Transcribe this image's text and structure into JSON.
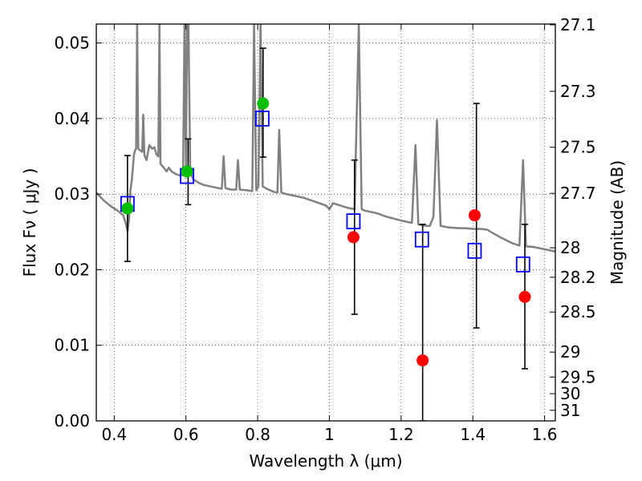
{
  "chart_data": {
    "type": "scatter",
    "title": "",
    "xlabel": "Wavelength  λ (μm)",
    "ylabel": "Flux  Fν  ( μJy )",
    "ylabel_right": "Magnitude (AB)",
    "xlim": [
      0.35,
      1.63
    ],
    "ylim": [
      0.0,
      0.0525
    ],
    "grid": true,
    "x_ticks": [
      0.4,
      0.6,
      0.8,
      1.0,
      1.2,
      1.4,
      1.6
    ],
    "x_tick_labels": [
      "0.4",
      "0.6",
      "0.8",
      "1",
      "1.2",
      "1.4",
      "1.6"
    ],
    "y_ticks": [
      0.0,
      0.01,
      0.02,
      0.03,
      0.04,
      0.05
    ],
    "y_tick_labels": [
      "0.00",
      "0.01",
      "0.02",
      "0.03",
      "0.04",
      "0.05"
    ],
    "mag_ticks": [
      {
        "label": "27.1",
        "flux": 0.0524
      },
      {
        "label": "27.3",
        "flux": 0.0436
      },
      {
        "label": "27.5",
        "flux": 0.0362
      },
      {
        "label": "27.7",
        "flux": 0.0301
      },
      {
        "label": "28",
        "flux": 0.0229
      },
      {
        "label": "28.2",
        "flux": 0.019
      },
      {
        "label": "28.5",
        "flux": 0.0144
      },
      {
        "label": "29",
        "flux": 0.0091
      },
      {
        "label": "29.5",
        "flux": 0.0058
      },
      {
        "label": "30",
        "flux": 0.0036
      },
      {
        "label": "31",
        "flux": 0.0014
      }
    ],
    "series": [
      {
        "kind": "line",
        "color": "#808080",
        "points": [
          [
            0.35,
            0.0302
          ],
          [
            0.37,
            0.0292
          ],
          [
            0.39,
            0.0284
          ],
          [
            0.41,
            0.0278
          ],
          [
            0.425,
            0.0272
          ],
          [
            0.432,
            0.0262
          ],
          [
            0.437,
            0.0251
          ],
          [
            0.441,
            0.0265
          ],
          [
            0.445,
            0.0305
          ],
          [
            0.449,
            0.0318
          ],
          [
            0.452,
            0.0335
          ],
          [
            0.455,
            0.0352
          ],
          [
            0.458,
            0.0358
          ],
          [
            0.461,
            0.036
          ],
          [
            0.464,
            0.0525
          ],
          [
            0.467,
            0.036
          ],
          [
            0.472,
            0.0358
          ],
          [
            0.478,
            0.0356
          ],
          [
            0.481,
            0.0405
          ],
          [
            0.484,
            0.0352
          ],
          [
            0.49,
            0.0345
          ],
          [
            0.498,
            0.0365
          ],
          [
            0.506,
            0.036
          ],
          [
            0.512,
            0.0362
          ],
          [
            0.518,
            0.0352
          ],
          [
            0.523,
            0.035
          ],
          [
            0.526,
            0.0525
          ],
          [
            0.529,
            0.034
          ],
          [
            0.538,
            0.0335
          ],
          [
            0.546,
            0.033
          ],
          [
            0.552,
            0.0335
          ],
          [
            0.56,
            0.033
          ],
          [
            0.57,
            0.0327
          ],
          [
            0.58,
            0.0325
          ],
          [
            0.592,
            0.0325
          ],
          [
            0.596,
            0.0525
          ],
          [
            0.6,
            0.033
          ],
          [
            0.603,
            0.0525
          ],
          [
            0.607,
            0.0525
          ],
          [
            0.612,
            0.033
          ],
          [
            0.62,
            0.032
          ],
          [
            0.635,
            0.0315
          ],
          [
            0.65,
            0.0312
          ],
          [
            0.67,
            0.031
          ],
          [
            0.69,
            0.0308
          ],
          [
            0.7,
            0.0307
          ],
          [
            0.705,
            0.035
          ],
          [
            0.71,
            0.0308
          ],
          [
            0.725,
            0.0306
          ],
          [
            0.74,
            0.0306
          ],
          [
            0.745,
            0.0345
          ],
          [
            0.75,
            0.0306
          ],
          [
            0.77,
            0.0305
          ],
          [
            0.785,
            0.0304
          ],
          [
            0.79,
            0.0525
          ],
          [
            0.796,
            0.0305
          ],
          [
            0.802,
            0.031
          ],
          [
            0.808,
            0.0525
          ],
          [
            0.814,
            0.031
          ],
          [
            0.83,
            0.0306
          ],
          [
            0.845,
            0.0303
          ],
          [
            0.855,
            0.0302
          ],
          [
            0.86,
            0.0385
          ],
          [
            0.866,
            0.0302
          ],
          [
            0.88,
            0.03
          ],
          [
            0.9,
            0.0298
          ],
          [
            0.93,
            0.0295
          ],
          [
            0.96,
            0.029
          ],
          [
            0.99,
            0.0285
          ],
          [
            1.0,
            0.028
          ],
          [
            1.01,
            0.0288
          ],
          [
            1.03,
            0.0285
          ],
          [
            1.05,
            0.0282
          ],
          [
            1.07,
            0.028
          ],
          [
            1.082,
            0.0525
          ],
          [
            1.09,
            0.028
          ],
          [
            1.1,
            0.0278
          ],
          [
            1.13,
            0.0275
          ],
          [
            1.16,
            0.027
          ],
          [
            1.2,
            0.0265
          ],
          [
            1.23,
            0.0262
          ],
          [
            1.24,
            0.0365
          ],
          [
            1.248,
            0.026
          ],
          [
            1.27,
            0.0258
          ],
          [
            1.28,
            0.0258
          ],
          [
            1.29,
            0.027
          ],
          [
            1.3,
            0.0398
          ],
          [
            1.31,
            0.0258
          ],
          [
            1.33,
            0.0256
          ],
          [
            1.36,
            0.0255
          ],
          [
            1.38,
            0.0255
          ],
          [
            1.4,
            0.0254
          ],
          [
            1.42,
            0.0254
          ],
          [
            1.44,
            0.0253
          ],
          [
            1.45,
            0.025
          ],
          [
            1.48,
            0.0242
          ],
          [
            1.51,
            0.0235
          ],
          [
            1.53,
            0.0232
          ],
          [
            1.54,
            0.0345
          ],
          [
            1.548,
            0.0231
          ],
          [
            1.57,
            0.023
          ],
          [
            1.59,
            0.0228
          ],
          [
            1.61,
            0.0226
          ],
          [
            1.63,
            0.0224
          ]
        ]
      },
      {
        "kind": "errorbar",
        "color": "#000000",
        "points": [
          {
            "x": 0.437,
            "ylo": 0.0211,
            "yhi": 0.0351
          },
          {
            "x": 0.606,
            "ylo": 0.0286,
            "yhi": 0.0373
          },
          {
            "x": 0.815,
            "ylo": 0.0349,
            "yhi": 0.0493
          },
          {
            "x": 1.07,
            "ylo": 0.0141,
            "yhi": 0.0345
          },
          {
            "x": 1.26,
            "ylo": 0.0,
            "yhi": 0.026
          },
          {
            "x": 1.41,
            "ylo": 0.0123,
            "yhi": 0.042
          },
          {
            "x": 1.545,
            "ylo": 0.0069,
            "yhi": 0.026
          }
        ]
      },
      {
        "kind": "marker",
        "shape": "square",
        "color": "#0000ff",
        "points": [
          [
            0.437,
            0.0287
          ],
          [
            0.603,
            0.0324
          ],
          [
            0.813,
            0.04
          ],
          [
            1.067,
            0.0264
          ],
          [
            1.258,
            0.024
          ],
          [
            1.405,
            0.0225
          ],
          [
            1.54,
            0.0207
          ]
        ]
      },
      {
        "kind": "marker",
        "shape": "circle",
        "color": "#00c000",
        "points": [
          [
            0.437,
            0.0281
          ],
          [
            0.603,
            0.033
          ],
          [
            0.815,
            0.042
          ]
        ]
      },
      {
        "kind": "marker",
        "shape": "circle",
        "color": "#ff0000",
        "points": [
          [
            1.067,
            0.0243
          ],
          [
            1.26,
            0.008
          ],
          [
            1.405,
            0.0272
          ],
          [
            1.545,
            0.0164
          ]
        ]
      }
    ]
  }
}
